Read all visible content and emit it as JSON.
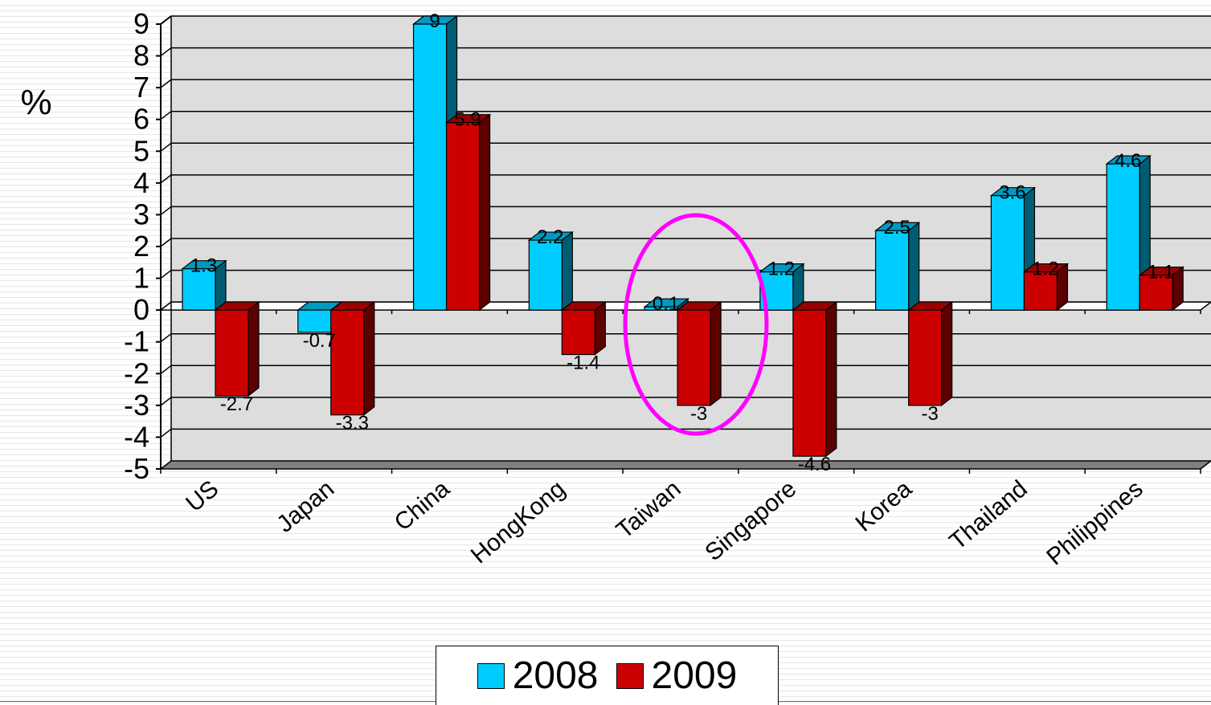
{
  "chart_data": {
    "type": "bar",
    "ylabel": "%",
    "ylim": [
      -5,
      9
    ],
    "yticks": [
      9,
      8,
      7,
      6,
      5,
      4,
      3,
      2,
      1,
      0,
      -1,
      -2,
      -3,
      -4,
      -5
    ],
    "categories": [
      "US",
      "Japan",
      "China",
      "HongKong",
      "Taiwan",
      "Singapore",
      "Korea",
      "Thailand",
      "Philippines"
    ],
    "series": [
      {
        "name": "2008",
        "color": "#00ccff",
        "values": [
          1.3,
          -0.7,
          9,
          2.2,
          0.1,
          1.2,
          2.5,
          3.6,
          4.6
        ]
      },
      {
        "name": "2009",
        "color": "#cc0000",
        "values": [
          -2.7,
          -3.3,
          5.9,
          -1.4,
          -3,
          -4.6,
          -3,
          1.2,
          1.1
        ]
      }
    ],
    "grid": true,
    "legend_position": "bottom-center",
    "annotation": {
      "type": "ellipse",
      "target_category": "Taiwan",
      "color": "#ff00ff"
    }
  }
}
